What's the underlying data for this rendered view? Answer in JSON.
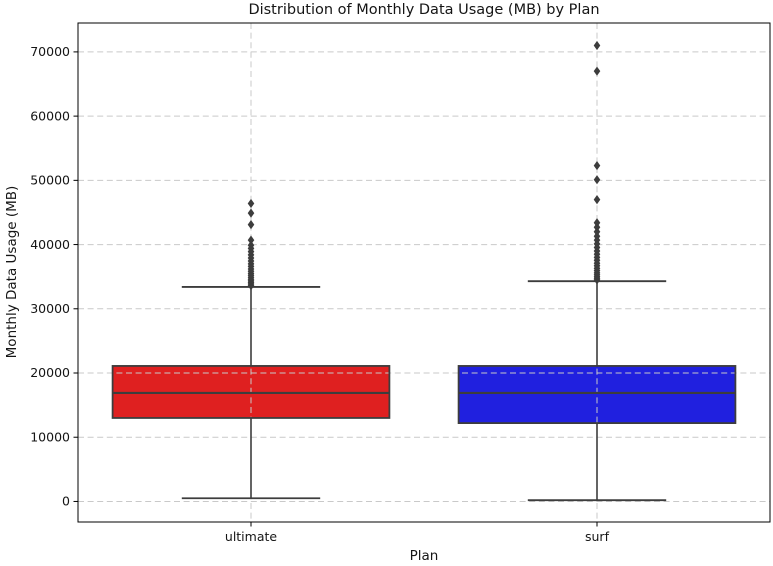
{
  "chart_data": {
    "type": "box",
    "title": "Distribution of Monthly Data Usage (MB) by Plan",
    "xlabel": "Plan",
    "ylabel": "Monthly Data Usage (MB)",
    "ylim": [
      -3200,
      74500
    ],
    "yticks": [
      0,
      10000,
      20000,
      30000,
      40000,
      50000,
      60000,
      70000
    ],
    "grid": true,
    "grid_style": "dashed",
    "legend": "none",
    "categories": [
      "ultimate",
      "surf"
    ],
    "colors": {
      "ultimate_fill": "#df2020",
      "surf_fill": "#2020df",
      "line": "#3d3d3d",
      "grid": "#c9c9c9",
      "spine": "#000000",
      "text": "#151515",
      "background": "#ffffff"
    },
    "series": [
      {
        "name": "ultimate",
        "fill": "#df2020",
        "whisker_low": 500,
        "q1": 13000,
        "median": 16900,
        "q3": 21100,
        "whisker_high": 33400,
        "outliers": [
          33600,
          33850,
          34100,
          34350,
          34600,
          34900,
          35200,
          35500,
          35850,
          36200,
          36600,
          37000,
          37450,
          37900,
          38400,
          38900,
          39400,
          39900,
          40700,
          43100,
          44900,
          46400
        ]
      },
      {
        "name": "surf",
        "fill": "#2020df",
        "whisker_low": 200,
        "q1": 12200,
        "median": 16900,
        "q3": 21100,
        "whisker_high": 34300,
        "outliers": [
          34500,
          34750,
          35000,
          35300,
          35600,
          35950,
          36300,
          36700,
          37100,
          37550,
          38000,
          38500,
          39000,
          39550,
          40100,
          40700,
          41300,
          42000,
          42700,
          43400,
          47000,
          50100,
          52300,
          67000,
          71000
        ]
      }
    ]
  }
}
